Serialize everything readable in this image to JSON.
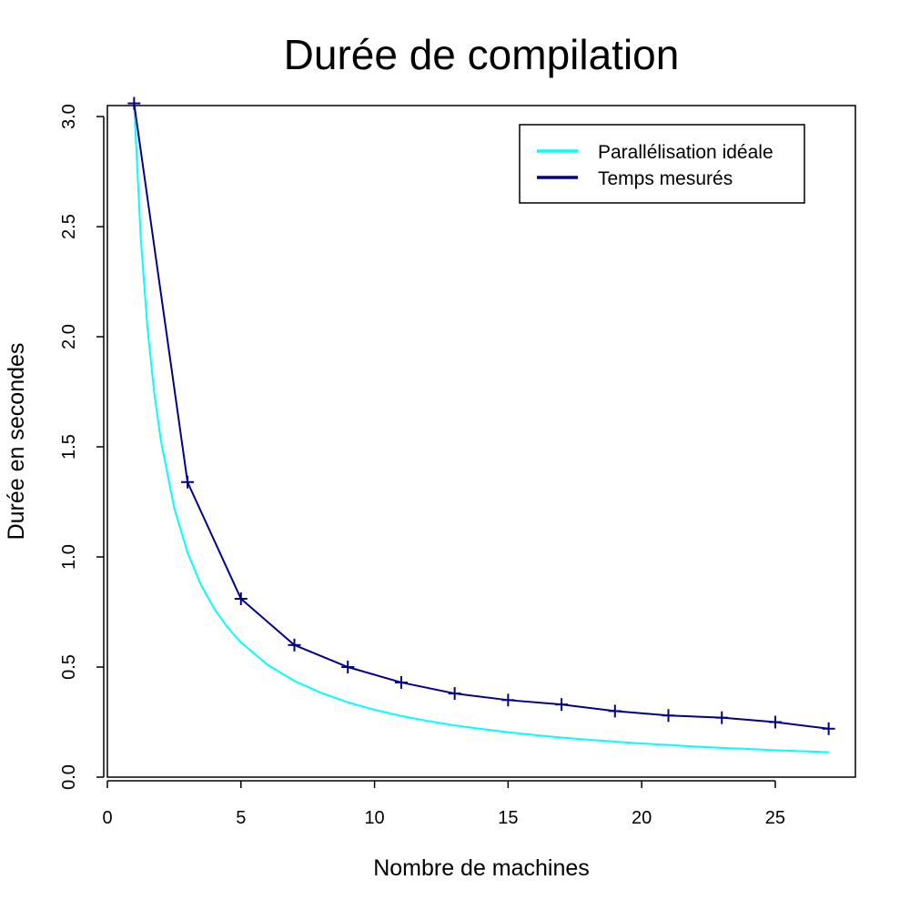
{
  "chart_data": {
    "type": "line",
    "title": "Durée de compilation",
    "xlabel": "Nombre de machines",
    "ylabel": "Durée en secondes",
    "xlim": [
      0,
      28
    ],
    "ylim": [
      0,
      3.05
    ],
    "x_ticks": [
      0,
      5,
      10,
      15,
      20,
      25
    ],
    "x_tick_labels": [
      "0",
      "5",
      "10",
      "15",
      "20",
      "25"
    ],
    "y_ticks": [
      0,
      0.5,
      1,
      1.5,
      2,
      2.5,
      3
    ],
    "y_tick_labels": [
      "0.0",
      "0.5",
      "1.0",
      "1.5",
      "2.0",
      "2.5",
      "3.0"
    ],
    "grid": false,
    "legend_position": "top-right",
    "series": [
      {
        "name": "Parallélisation idéale",
        "color": "#00ffff",
        "style": "line",
        "x": [
          1,
          1.25,
          1.5,
          1.75,
          2,
          2.5,
          3,
          3.5,
          4,
          4.5,
          5,
          6,
          7,
          8,
          9,
          10,
          11,
          12,
          13,
          14,
          15,
          16,
          17,
          18,
          19,
          20,
          21,
          22,
          23,
          24,
          25,
          26,
          27
        ],
        "values": [
          3.06,
          2.448,
          2.04,
          1.749,
          1.53,
          1.224,
          1.02,
          0.874,
          0.765,
          0.68,
          0.612,
          0.51,
          0.437,
          0.383,
          0.34,
          0.306,
          0.278,
          0.255,
          0.235,
          0.219,
          0.204,
          0.191,
          0.18,
          0.17,
          0.161,
          0.153,
          0.146,
          0.139,
          0.133,
          0.128,
          0.122,
          0.118,
          0.113
        ]
      },
      {
        "name": "Temps mesurés",
        "color": "#00008b",
        "style": "line+cross",
        "x": [
          1,
          3,
          5,
          7,
          9,
          11,
          13,
          15,
          17,
          19,
          21,
          23,
          25,
          27
        ],
        "values": [
          3.06,
          1.34,
          0.81,
          0.6,
          0.5,
          0.43,
          0.38,
          0.35,
          0.33,
          0.3,
          0.28,
          0.27,
          0.25,
          0.22
        ]
      }
    ]
  }
}
